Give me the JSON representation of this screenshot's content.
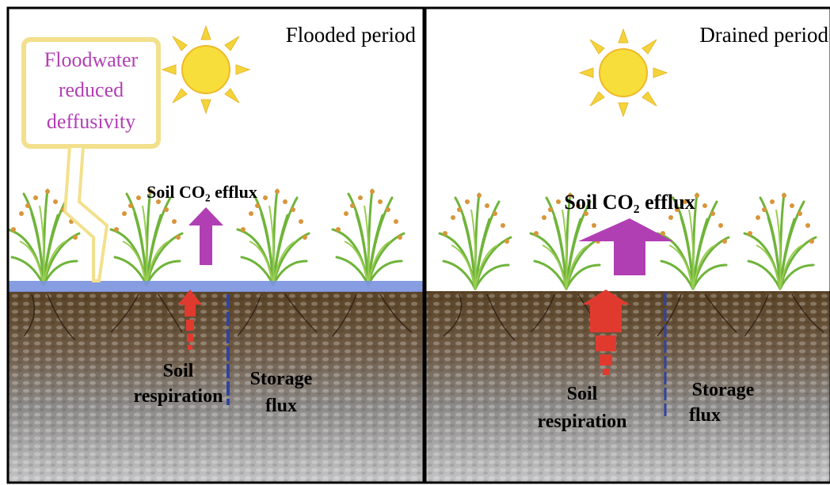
{
  "panels": [
    {
      "title": "Flooded period",
      "efflux_label": "Soil CO₂ efflux",
      "respiration_label": [
        "Soil",
        "respiration"
      ],
      "storage_label": [
        "Storage",
        "flux"
      ]
    },
    {
      "title": "Drained period",
      "efflux_label": "Soil CO₂ efflux",
      "respiration_label": [
        "Soil",
        "respiration"
      ],
      "storage_label": [
        "Storage",
        "flux"
      ]
    }
  ],
  "callout": {
    "lines": [
      "Floodwater",
      "reduced",
      "deffusivity"
    ]
  }
}
